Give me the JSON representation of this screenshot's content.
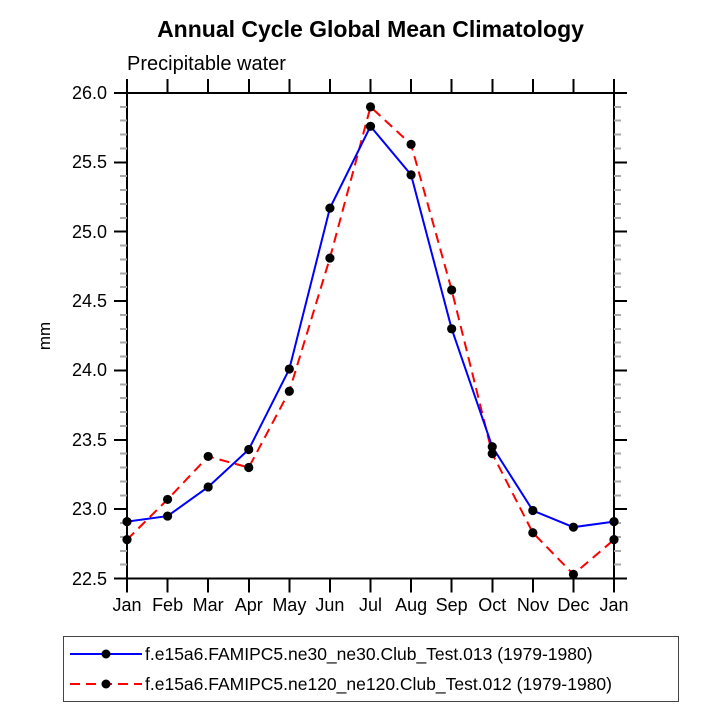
{
  "chart_data": {
    "type": "line",
    "title": "Annual Cycle Global Mean Climatology",
    "subtitle": "Precipitable water",
    "ylabel": "mm",
    "xlabel": "",
    "categories": [
      "Jan",
      "Feb",
      "Mar",
      "Apr",
      "May",
      "Jun",
      "Jul",
      "Aug",
      "Sep",
      "Oct",
      "Nov",
      "Dec",
      "Jan"
    ],
    "ylim": [
      22.5,
      26.0
    ],
    "y_major_step": 0.5,
    "y_minor_step": 0.1,
    "y_tick_labels": [
      "26.0",
      "25.5",
      "25.0",
      "24.5",
      "24.0",
      "23.5",
      "23.0",
      "22.5"
    ],
    "grid": false,
    "legend_position": "bottom",
    "marker": {
      "shape": "circle",
      "color": "#000000"
    },
    "series": [
      {
        "name": "f.e15a6.FAMIPC5.ne30_ne30.Club_Test.013 (1979-1980)",
        "color": "#0000ff",
        "line_style": "solid",
        "values": [
          22.91,
          22.95,
          23.16,
          23.43,
          24.01,
          25.17,
          25.76,
          25.41,
          24.3,
          23.45,
          22.99,
          22.87,
          22.91
        ]
      },
      {
        "name": "f.e15a6.FAMIPC5.ne120_ne120.Club_Test.012 (1979-1980)",
        "color": "#ff0000",
        "line_style": "dashed",
        "values": [
          22.78,
          23.07,
          23.38,
          23.3,
          23.85,
          24.81,
          25.9,
          25.63,
          24.58,
          23.4,
          22.83,
          22.53,
          22.78
        ]
      }
    ]
  }
}
